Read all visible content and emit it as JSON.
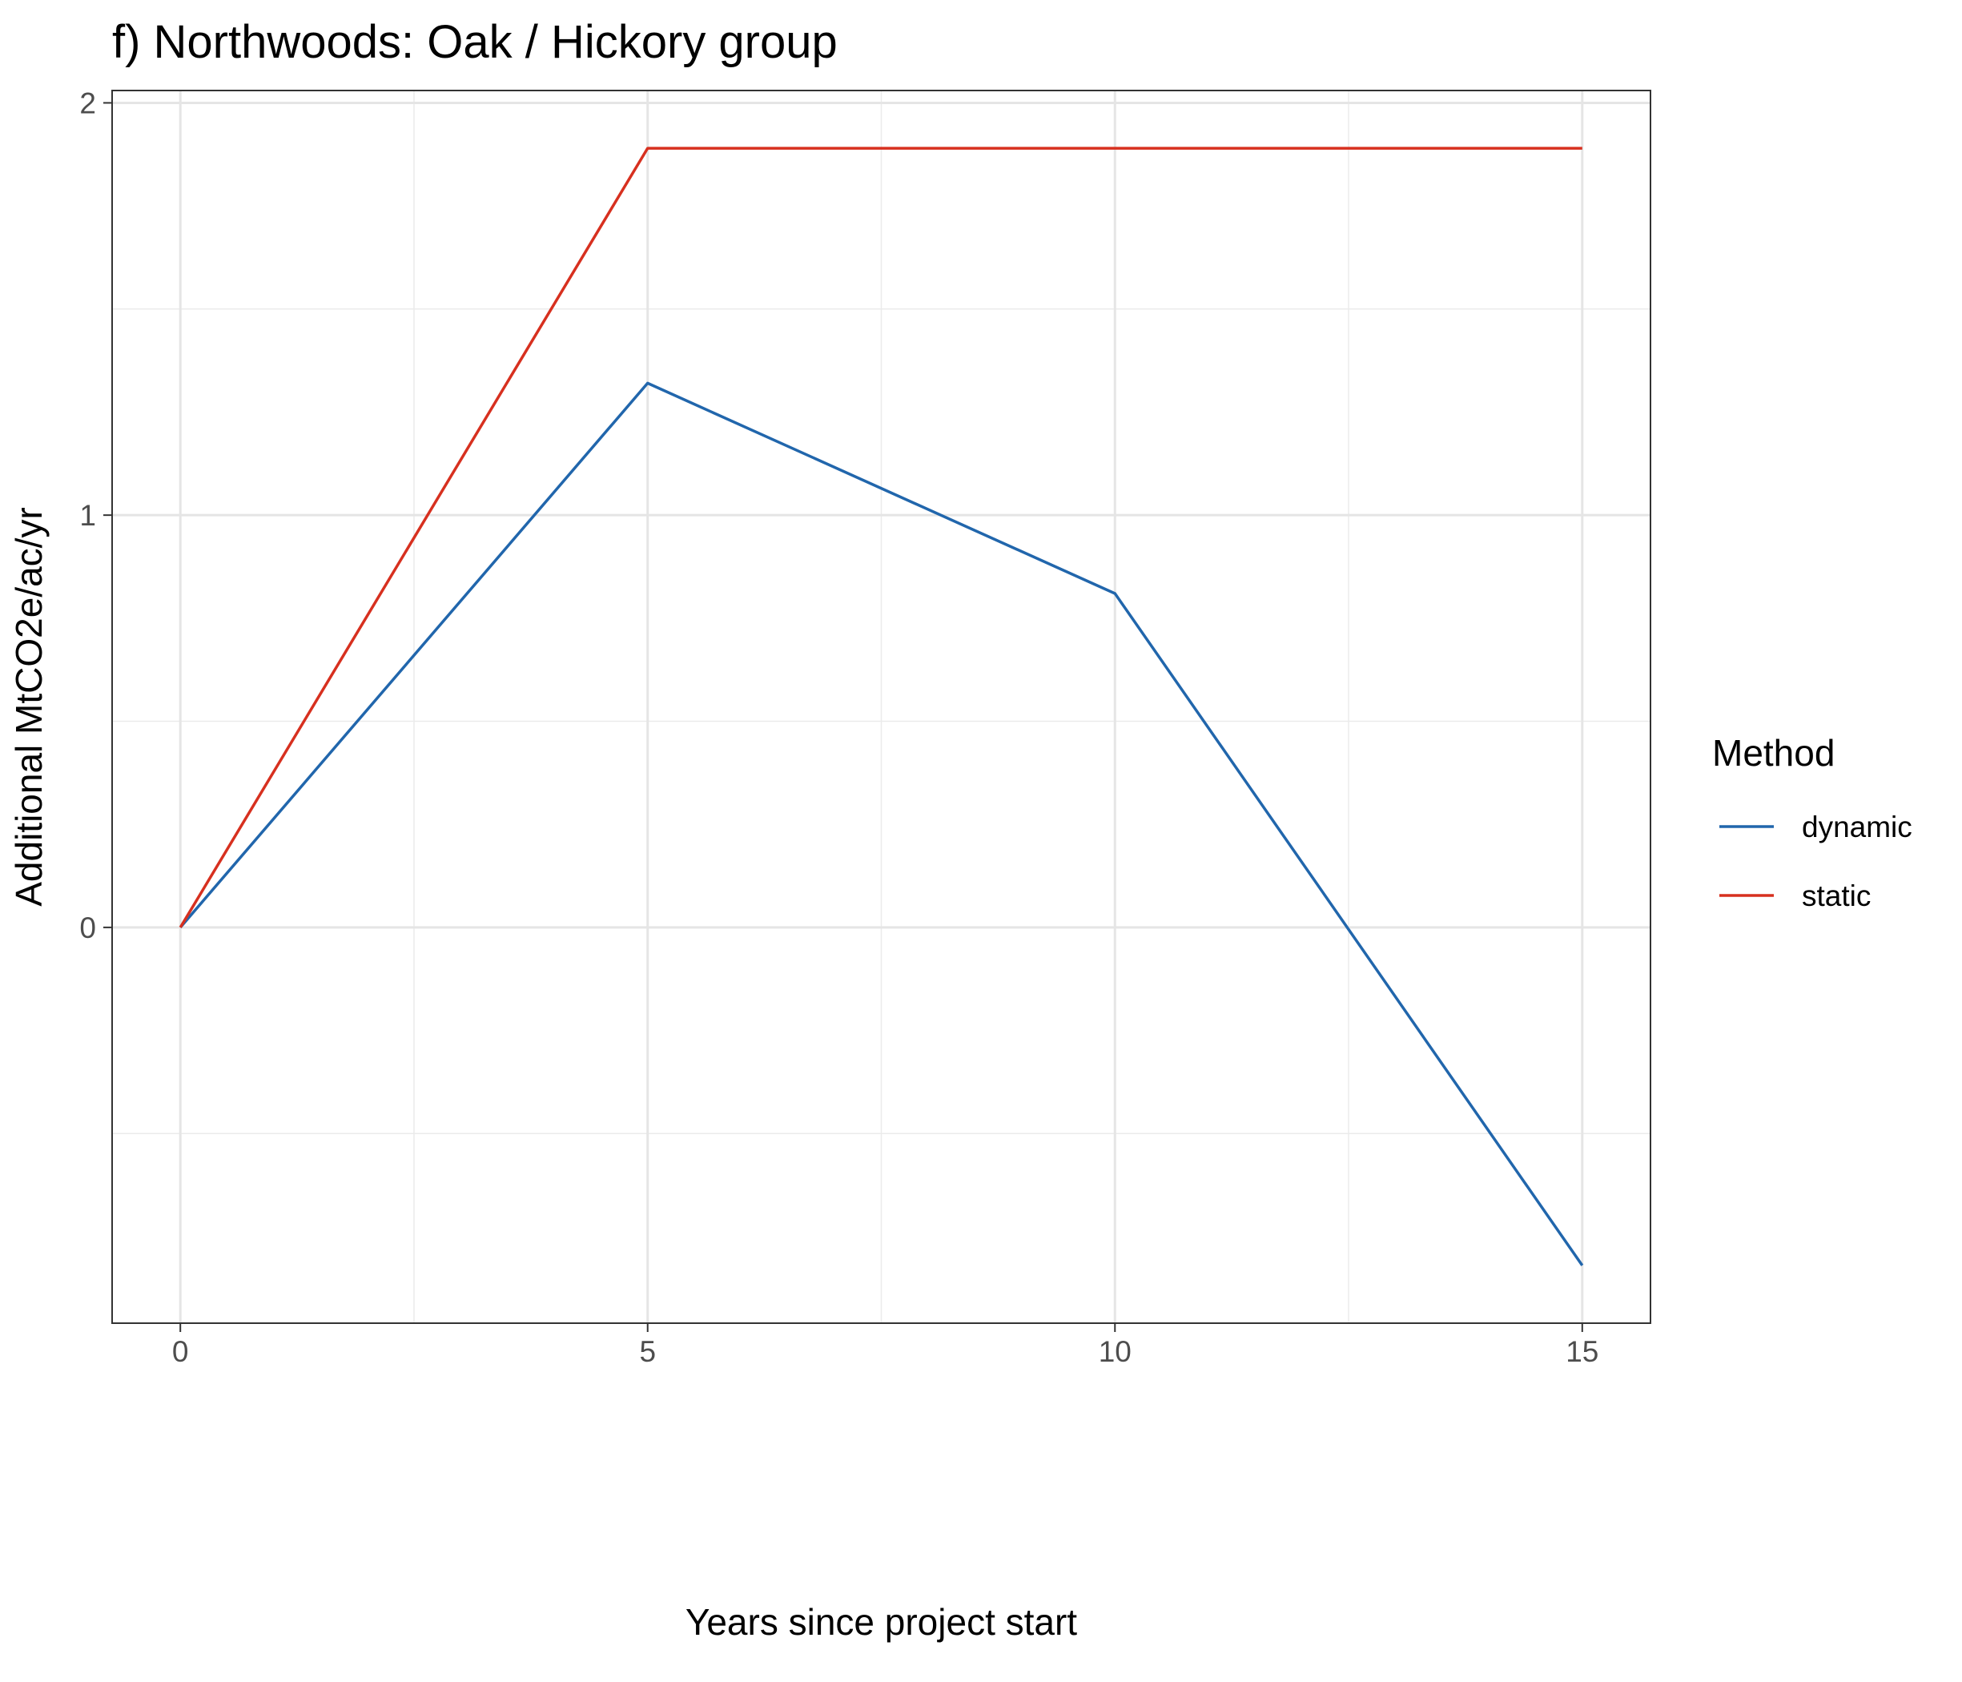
{
  "chart_data": {
    "type": "line",
    "title": "f) Northwoods: Oak / Hickory group",
    "xlabel": "Years since project start",
    "ylabel": "Additional MtCO2e/ac/yr",
    "x": [
      0,
      5,
      10,
      15
    ],
    "xlim": [
      -0.73,
      15.73
    ],
    "ylim": [
      -0.96,
      2.03
    ],
    "x_ticks": [
      0,
      5,
      10,
      15
    ],
    "x_tick_labels": [
      "0",
      "5",
      "10",
      "15"
    ],
    "y_ticks": [
      0,
      1,
      2
    ],
    "y_tick_labels": [
      "0",
      "1",
      "2"
    ],
    "grid": true,
    "legend": {
      "title": "Method",
      "position": "right"
    },
    "series": [
      {
        "name": "dynamic",
        "color": "#2166ac",
        "values": [
          0,
          1.32,
          0.81,
          -0.82
        ]
      },
      {
        "name": "static",
        "color": "#d7301f",
        "values": [
          0,
          1.89,
          1.89,
          1.89
        ]
      }
    ]
  }
}
